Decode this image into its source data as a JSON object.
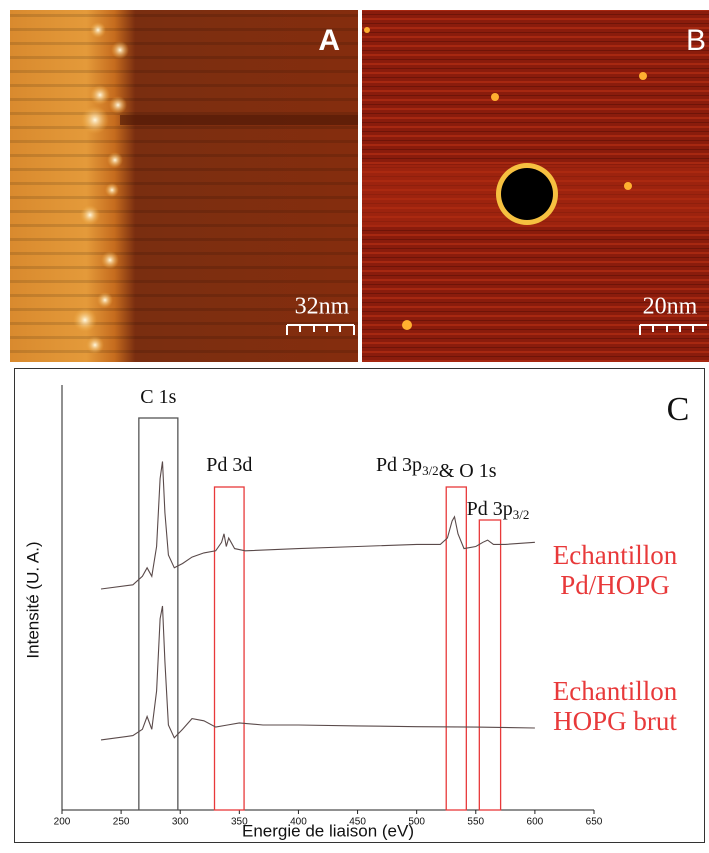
{
  "panels": [
    {
      "label": "A",
      "scale": "32nm"
    },
    {
      "label": "B",
      "scale": "20nm"
    }
  ],
  "chart_data": {
    "type": "line",
    "panel_label": "C",
    "x_label": "Energie de liaison (eV)",
    "y_label": "Intensité (U. A.)",
    "xlim": [
      200,
      650
    ],
    "xticks": [
      200,
      250,
      300,
      350,
      400,
      450,
      500,
      550,
      600,
      650
    ],
    "ylim": [
      0,
      100
    ],
    "series": [
      {
        "name": "Echantillon Pd/HOPG",
        "color": "#e8393a",
        "line_color": "#5a4a4a",
        "x": [
          233,
          260,
          268,
          272,
          276,
          280,
          283,
          285,
          287,
          290,
          295,
          302,
          310,
          320,
          330,
          335,
          337,
          339,
          341,
          343,
          346,
          355,
          400,
          450,
          500,
          520,
          526,
          530,
          532,
          535,
          540,
          550,
          556,
          560,
          565,
          575,
          600
        ],
        "values": [
          52,
          53,
          55,
          57,
          55,
          62,
          78,
          82,
          70,
          60,
          57,
          58,
          59.5,
          60.5,
          61,
          63,
          65,
          62,
          64,
          63,
          61.5,
          61,
          61.5,
          62,
          62.5,
          62.5,
          64,
          68,
          69,
          65,
          61.5,
          62,
          63,
          63.5,
          62.5,
          62.5,
          63
        ]
      },
      {
        "name": "Echantillon HOPG brut",
        "color": "#e8393a",
        "line_color": "#5a4a4a",
        "x": [
          233,
          260,
          268,
          272,
          276,
          280,
          283,
          285,
          287,
          290,
          295,
          302,
          310,
          320,
          330,
          340,
          350,
          370,
          400,
          450,
          500,
          550,
          600
        ],
        "values": [
          16.5,
          17.5,
          19,
          22,
          19,
          28,
          45,
          48,
          35,
          20,
          17,
          19,
          21.5,
          21,
          19.5,
          20,
          20.5,
          20,
          20,
          19.8,
          19.6,
          19.5,
          19.3
        ]
      }
    ],
    "regions": [
      {
        "label": "C 1s",
        "xmin": 265,
        "xmax": 298,
        "color": "#555555"
      },
      {
        "label": "Pd 3d",
        "xmin": 329,
        "xmax": 354,
        "color": "#e8393a"
      },
      {
        "label": "Pd 3p",
        "sub": "3/2",
        "suffix": "& O 1s",
        "xmin": 525,
        "xmax": 542,
        "color": "#e8393a"
      },
      {
        "label": "Pd 3p",
        "sub": "3/2",
        "xmin": 553,
        "xmax": 571,
        "color": "#e8393a"
      }
    ]
  }
}
